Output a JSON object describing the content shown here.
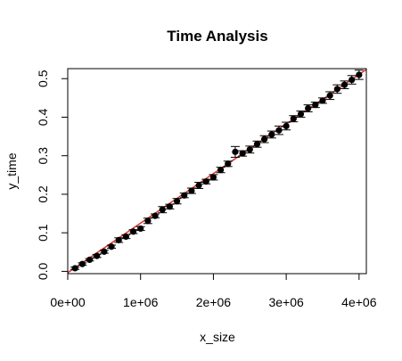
{
  "chart_data": {
    "type": "scatter",
    "title": "Time Analysis",
    "xlabel": "x_size",
    "ylabel": "y_time",
    "xlim": [
      0,
      4100000
    ],
    "ylim": [
      -0.006,
      0.526
    ],
    "x_ticks": [
      {
        "value": 0,
        "label": "0e+00"
      },
      {
        "value": 1000000,
        "label": "1e+06"
      },
      {
        "value": 2000000,
        "label": "2e+06"
      },
      {
        "value": 3000000,
        "label": "3e+06"
      },
      {
        "value": 4000000,
        "label": "4e+06"
      }
    ],
    "y_ticks": [
      {
        "value": 0.0,
        "label": "0.0"
      },
      {
        "value": 0.1,
        "label": "0.1"
      },
      {
        "value": 0.2,
        "label": "0.2"
      },
      {
        "value": 0.3,
        "label": "0.3"
      },
      {
        "value": 0.4,
        "label": "0.4"
      },
      {
        "value": 0.5,
        "label": "0.5"
      }
    ],
    "grid": false,
    "fit_line": {
      "intercept": -0.0035,
      "slope": 1.2857e-07,
      "color": "#e0322c"
    },
    "point_color": "#000000",
    "points": [
      {
        "x": 100000,
        "y": 0.008,
        "err": 0.003
      },
      {
        "x": 200000,
        "y": 0.019,
        "err": 0.003
      },
      {
        "x": 300000,
        "y": 0.03,
        "err": 0.003
      },
      {
        "x": 400000,
        "y": 0.04,
        "err": 0.004
      },
      {
        "x": 500000,
        "y": 0.051,
        "err": 0.004
      },
      {
        "x": 600000,
        "y": 0.064,
        "err": 0.004
      },
      {
        "x": 700000,
        "y": 0.081,
        "err": 0.006
      },
      {
        "x": 800000,
        "y": 0.09,
        "err": 0.005
      },
      {
        "x": 900000,
        "y": 0.103,
        "err": 0.005
      },
      {
        "x": 1000000,
        "y": 0.111,
        "err": 0.005
      },
      {
        "x": 1100000,
        "y": 0.131,
        "err": 0.007
      },
      {
        "x": 1200000,
        "y": 0.144,
        "err": 0.005
      },
      {
        "x": 1300000,
        "y": 0.16,
        "err": 0.008
      },
      {
        "x": 1400000,
        "y": 0.168,
        "err": 0.006
      },
      {
        "x": 1500000,
        "y": 0.182,
        "err": 0.007
      },
      {
        "x": 1600000,
        "y": 0.197,
        "err": 0.006
      },
      {
        "x": 1700000,
        "y": 0.209,
        "err": 0.007
      },
      {
        "x": 1800000,
        "y": 0.223,
        "err": 0.008
      },
      {
        "x": 1900000,
        "y": 0.233,
        "err": 0.006
      },
      {
        "x": 2000000,
        "y": 0.244,
        "err": 0.007
      },
      {
        "x": 2100000,
        "y": 0.263,
        "err": 0.007
      },
      {
        "x": 2200000,
        "y": 0.279,
        "err": 0.007
      },
      {
        "x": 2300000,
        "y": 0.31,
        "err": 0.014
      },
      {
        "x": 2400000,
        "y": 0.306,
        "err": 0.007
      },
      {
        "x": 2500000,
        "y": 0.316,
        "err": 0.009
      },
      {
        "x": 2600000,
        "y": 0.33,
        "err": 0.008
      },
      {
        "x": 2700000,
        "y": 0.343,
        "err": 0.009
      },
      {
        "x": 2800000,
        "y": 0.355,
        "err": 0.009
      },
      {
        "x": 2900000,
        "y": 0.366,
        "err": 0.011
      },
      {
        "x": 3000000,
        "y": 0.377,
        "err": 0.01
      },
      {
        "x": 3100000,
        "y": 0.396,
        "err": 0.008
      },
      {
        "x": 3200000,
        "y": 0.408,
        "err": 0.008
      },
      {
        "x": 3300000,
        "y": 0.423,
        "err": 0.009
      },
      {
        "x": 3400000,
        "y": 0.432,
        "err": 0.007
      },
      {
        "x": 3500000,
        "y": 0.443,
        "err": 0.007
      },
      {
        "x": 3600000,
        "y": 0.456,
        "err": 0.01
      },
      {
        "x": 3700000,
        "y": 0.473,
        "err": 0.011
      },
      {
        "x": 3800000,
        "y": 0.484,
        "err": 0.01
      },
      {
        "x": 3900000,
        "y": 0.497,
        "err": 0.011
      },
      {
        "x": 4000000,
        "y": 0.51,
        "err": 0.012
      }
    ]
  }
}
